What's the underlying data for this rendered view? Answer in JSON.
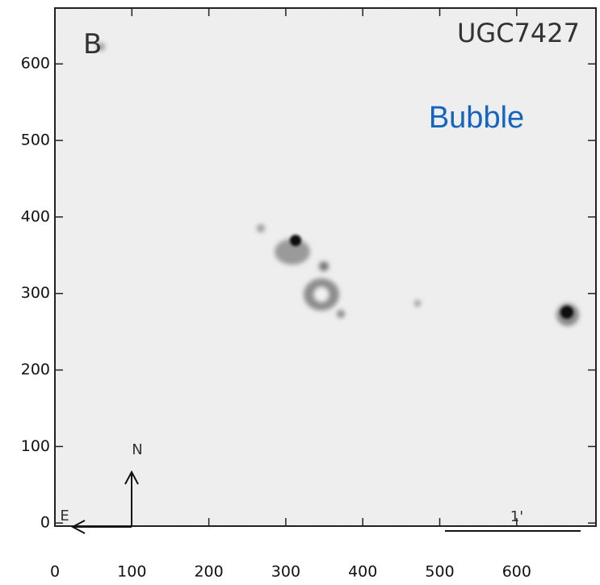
{
  "chart_data": {
    "type": "image",
    "labels": {
      "band": "B",
      "object": "UGC7427",
      "annotation": "Bubble",
      "north": "N",
      "east": "E",
      "scale": "1'"
    },
    "xlim": [
      0,
      703
    ],
    "ylim": [
      -4,
      673
    ],
    "xticks": [
      0,
      100,
      200,
      300,
      400,
      500,
      600
    ],
    "yticks": [
      0,
      100,
      200,
      300,
      400,
      500,
      600
    ]
  }
}
